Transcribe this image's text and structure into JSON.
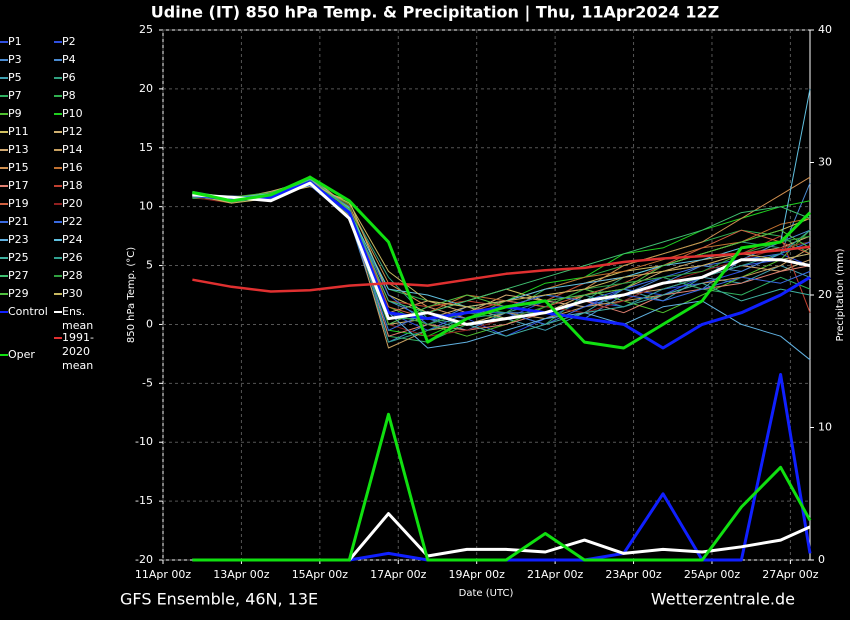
{
  "chart_data": {
    "type": "line",
    "title": "Udine  (IT)  850 hPa Temp. & Precipitation | Thu, 11Apr2024 12Z",
    "source": "GFS Ensemble, 46N, 13E",
    "site": "Wetterzentrale.de",
    "xlabel": "Date (UTC)",
    "ylabel": "850 hPa Temp. (°C)",
    "y2label": "Precipitation (mm)",
    "grid": true,
    "xlim": [
      "11Apr 00z",
      "27Apr 12z"
    ],
    "xticks": [
      "11Apr 00z",
      "13Apr 00z",
      "15Apr 00z",
      "17Apr 00z",
      "19Apr 00z",
      "21Apr 00z",
      "23Apr 00z",
      "25Apr 00z",
      "27Apr 00z"
    ],
    "ylim": [
      -20,
      25
    ],
    "yticks": [
      -20,
      -15,
      -10,
      -5,
      0,
      5,
      10,
      15,
      20,
      25
    ],
    "y2lim": [
      0,
      40
    ],
    "y2ticks": [
      0,
      10,
      20,
      30,
      40
    ],
    "x": [
      "11Apr 18z",
      "12Apr 18z",
      "13Apr 18z",
      "14Apr 18z",
      "15Apr 18z",
      "16Apr 18z",
      "17Apr 18z",
      "18Apr 18z",
      "19Apr 18z",
      "20Apr 18z",
      "21Apr 18z",
      "22Apr 18z",
      "23Apr 18z",
      "24Apr 18z",
      "25Apr 18z",
      "26Apr 18z",
      "27Apr 12z"
    ],
    "series": [
      {
        "name": "P1",
        "color": "#3050e0",
        "values": [
          11.2,
          10.4,
          11,
          12.3,
          9.8,
          1,
          -0.5,
          1,
          0.5,
          2,
          1.5,
          3,
          2.5,
          4,
          5,
          5.5,
          6
        ]
      },
      {
        "name": "P2",
        "color": "#3050e0",
        "values": [
          10.9,
          10.8,
          10.5,
          12,
          9.2,
          0,
          1.5,
          0.5,
          -1,
          0.5,
          2,
          1.5,
          3,
          3.5,
          4.5,
          6,
          5
        ]
      },
      {
        "name": "P3",
        "color": "#4a8ad0",
        "values": [
          11,
          10.6,
          10.9,
          11.8,
          9.6,
          2,
          0.5,
          -0.5,
          1,
          1,
          0.5,
          2.5,
          4,
          3,
          5.5,
          7,
          8
        ]
      },
      {
        "name": "P4",
        "color": "#4a8ad0",
        "values": [
          11.1,
          10.5,
          11.2,
          12.4,
          9,
          -1.5,
          0,
          1.5,
          2,
          1.5,
          3,
          2,
          3.5,
          5,
          4.5,
          6,
          12
        ]
      },
      {
        "name": "P5",
        "color": "#40a0b0",
        "values": [
          10.8,
          10.9,
          10.7,
          12.1,
          9.4,
          0.5,
          1,
          0,
          0.5,
          -0.5,
          1,
          3,
          2,
          4,
          3.5,
          5,
          4
        ]
      },
      {
        "name": "P6",
        "color": "#30a080",
        "values": [
          11,
          10.3,
          11,
          12.2,
          10,
          4,
          0.5,
          1,
          1.5,
          2.5,
          2,
          4,
          5,
          6,
          7,
          6.5,
          7
        ]
      },
      {
        "name": "P7",
        "color": "#30b060",
        "values": [
          11.3,
          10.7,
          10.6,
          11.9,
          9.7,
          -1,
          -1.5,
          0,
          1,
          0,
          2.5,
          3.5,
          4,
          3,
          2.5,
          4,
          3
        ]
      },
      {
        "name": "P8",
        "color": "#30b050",
        "values": [
          10.7,
          10.6,
          11.1,
          12.5,
          9.1,
          3,
          2,
          1.5,
          1,
          3,
          4,
          5,
          6,
          7,
          8,
          7.5,
          6
        ]
      },
      {
        "name": "P9",
        "color": "#50c030",
        "values": [
          11,
          10.4,
          10.8,
          12,
          10.2,
          1.5,
          0,
          -1,
          0,
          1.5,
          3,
          2,
          1,
          2.5,
          4,
          5.5,
          8
        ]
      },
      {
        "name": "P10",
        "color": "#20d020",
        "values": [
          11.2,
          10.8,
          10.9,
          12.3,
          9.5,
          -0.5,
          -1,
          0.5,
          2,
          3.5,
          4,
          6,
          6.5,
          8,
          9,
          10,
          10.5
        ]
      },
      {
        "name": "P11",
        "color": "#d0c060",
        "values": [
          10.9,
          10.5,
          11,
          11.7,
          10.5,
          2.5,
          1,
          2,
          3,
          2,
          3.5,
          4.5,
          5,
          6,
          7,
          8,
          9
        ]
      },
      {
        "name": "P12",
        "color": "#d0b070",
        "values": [
          11,
          10.7,
          10.5,
          12.6,
          9.9,
          0,
          0.5,
          1.5,
          0.5,
          1,
          2.5,
          3,
          4.5,
          5.5,
          6,
          6.5,
          7.5
        ]
      },
      {
        "name": "P13",
        "color": "#d0a870",
        "values": [
          11.1,
          10.6,
          11.3,
          12.2,
          9.3,
          1,
          2,
          1,
          2.5,
          2,
          1.5,
          2.5,
          3,
          4,
          5,
          4.5,
          5.5
        ]
      },
      {
        "name": "P14",
        "color": "#c8a060",
        "values": [
          10.8,
          10.9,
          10.8,
          12,
          9.6,
          -2,
          -0.5,
          0,
          1,
          0.5,
          1.5,
          2,
          2.5,
          3.5,
          4,
          5,
          6.5
        ]
      },
      {
        "name": "P15",
        "color": "#d09050",
        "values": [
          11,
          10.4,
          11,
          12.4,
          10,
          3.5,
          1.5,
          0.5,
          1.5,
          2.5,
          3,
          5,
          6,
          7,
          9,
          11,
          12.5
        ]
      },
      {
        "name": "P16",
        "color": "#c07030",
        "values": [
          11.2,
          10.6,
          10.7,
          11.9,
          9.2,
          0.5,
          1,
          2.5,
          2,
          3,
          4,
          4.5,
          5.5,
          6.5,
          7,
          8.5,
          9
        ]
      },
      {
        "name": "P17",
        "color": "#e08070",
        "values": [
          10.9,
          10.8,
          11.1,
          12.3,
          9.8,
          -1,
          0,
          -0.5,
          0,
          1,
          2,
          1,
          2.5,
          3,
          3.5,
          4.5,
          5
        ]
      },
      {
        "name": "P18",
        "color": "#c04030",
        "values": [
          11,
          10.5,
          10.9,
          12.1,
          9.4,
          2,
          1.5,
          2,
          1.5,
          2,
          3.5,
          4,
          4.5,
          5,
          6,
          7.5,
          1
        ]
      },
      {
        "name": "P19",
        "color": "#d06040",
        "values": [
          11.1,
          10.7,
          10.6,
          12.5,
          9.7,
          1.5,
          0.5,
          1,
          2,
          1.5,
          2.5,
          3.5,
          5,
          6.5,
          8,
          7,
          6
        ]
      },
      {
        "name": "P20",
        "color": "#902020",
        "values": [
          10.8,
          10.3,
          11.2,
          12,
          10.1,
          0,
          -1,
          -0.5,
          0.5,
          1.5,
          1,
          2,
          3.5,
          4.5,
          5.5,
          6.5,
          7
        ]
      },
      {
        "name": "P21",
        "color": "#3a6ae0",
        "values": [
          11,
          10.9,
          10.8,
          12.2,
          9.5,
          2.5,
          0,
          1,
          1,
          0,
          1.5,
          2.5,
          2,
          3,
          4,
          3.5,
          4.5
        ]
      },
      {
        "name": "P22",
        "color": "#3a6ae0",
        "values": [
          11.2,
          10.5,
          11,
          11.8,
          9,
          -0.5,
          1,
          0.5,
          1.5,
          2.5,
          2,
          3,
          4,
          5,
          5.5,
          6,
          7
        ]
      },
      {
        "name": "P23",
        "color": "#60b0e0",
        "values": [
          10.9,
          10.6,
          10.7,
          12.4,
          9.9,
          1,
          -2,
          -1.5,
          -0.5,
          0.5,
          1,
          0,
          1.5,
          2,
          0,
          -1,
          -3
        ]
      },
      {
        "name": "P24",
        "color": "#60c0e0",
        "values": [
          11,
          10.8,
          11.1,
          12,
          9.6,
          3,
          2.5,
          1.5,
          2,
          3,
          3.5,
          4,
          5,
          5.5,
          6.5,
          7,
          20
        ]
      },
      {
        "name": "P25",
        "color": "#40b0a0",
        "values": [
          11.1,
          10.4,
          10.9,
          12.3,
          9.3,
          0.5,
          0.5,
          0,
          -1,
          0,
          1,
          1.5,
          2.5,
          3.5,
          2,
          3,
          2.5
        ]
      },
      {
        "name": "P26",
        "color": "#30a090",
        "values": [
          10.8,
          10.7,
          10.6,
          12.1,
          10,
          -1.5,
          -0.5,
          0.5,
          1,
          2,
          2.5,
          1.5,
          3,
          4,
          5,
          6,
          8
        ]
      },
      {
        "name": "P27",
        "color": "#40c070",
        "values": [
          11,
          10.5,
          11,
          12.5,
          9.7,
          2,
          1,
          2,
          3,
          4,
          5,
          6,
          7,
          8,
          9.5,
          10,
          9
        ]
      },
      {
        "name": "P28",
        "color": "#30a040",
        "values": [
          11.2,
          10.6,
          10.8,
          11.9,
          9.4,
          1,
          0,
          1,
          0.5,
          1.5,
          3,
          3.5,
          4,
          4.5,
          6,
          7,
          7.5
        ]
      },
      {
        "name": "P29",
        "color": "#50c040",
        "values": [
          10.9,
          10.8,
          11.2,
          12.2,
          9.8,
          0,
          1.5,
          2.5,
          1.5,
          2,
          2.5,
          3,
          5,
          6,
          7,
          8,
          6.5
        ]
      },
      {
        "name": "P30",
        "color": "#c8b860",
        "values": [
          11,
          10.3,
          10.7,
          12,
          10.3,
          4.5,
          2,
          1.5,
          2,
          2.5,
          3,
          4,
          4.5,
          5,
          6,
          5.5,
          6
        ]
      },
      {
        "name": "Control",
        "color": "#1020ff",
        "width": 3,
        "values": [
          11,
          10.6,
          10.8,
          12.1,
          9.5,
          1,
          0.5,
          1,
          1.5,
          1,
          0.5,
          0,
          -2,
          0,
          1,
          2.5,
          4
        ],
        "precip": [
          0,
          0,
          0,
          0,
          0,
          0.5,
          0,
          0,
          0,
          0,
          0,
          0.5,
          5,
          0,
          0,
          14,
          0.5
        ]
      },
      {
        "name": "Ens. mean",
        "color": "#ffffff",
        "width": 3,
        "values": [
          11,
          10.8,
          10.5,
          12,
          9,
          0.5,
          1,
          0,
          0.5,
          1,
          2,
          2.5,
          3.5,
          4,
          5.5,
          5.5,
          5
        ],
        "precip": [
          0,
          0,
          0,
          0,
          0,
          3.5,
          0.3,
          0.8,
          0.8,
          0.6,
          1.5,
          0.5,
          0.8,
          0.6,
          1,
          1.5,
          2.5
        ]
      },
      {
        "name": "1991-2020 mean",
        "color": "#e03030",
        "width": 2.5,
        "values": [
          3.8,
          3.2,
          2.8,
          2.9,
          3.3,
          3.5,
          3.3,
          3.8,
          4.3,
          4.6,
          4.8,
          5.3,
          5.6,
          5.8,
          6,
          6.3,
          6.6
        ]
      },
      {
        "name": "Oper",
        "color": "#10e010",
        "width": 3,
        "values": [
          11.2,
          10.5,
          11,
          12.5,
          10.5,
          7,
          -1.5,
          0.5,
          1.5,
          2,
          -1.5,
          -2,
          0,
          2,
          6.5,
          7,
          9.5
        ],
        "precip": [
          0,
          0,
          0,
          0,
          0,
          11,
          0,
          0,
          0,
          2,
          0,
          0,
          0,
          0,
          4,
          7,
          3
        ]
      }
    ]
  }
}
